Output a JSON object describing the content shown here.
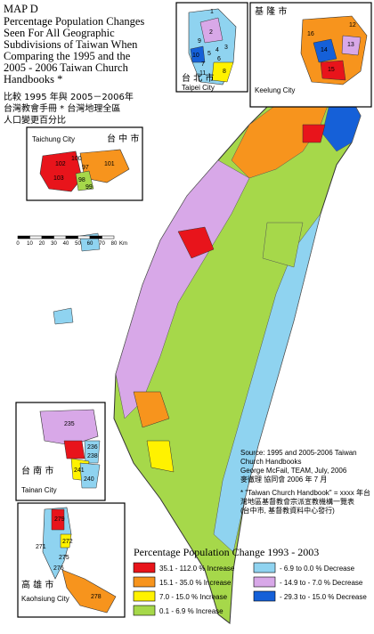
{
  "title_block": {
    "lines": [
      "MAP  D",
      "Percentage Population Changes",
      "Seen For All Geographic",
      "Subdivisions of Taiwan When",
      "Comparing the 1995 and the",
      "2005 - 2006 Taiwan Church",
      "Handbooks *"
    ]
  },
  "chinese_title": {
    "lines": [
      "比較 1995 年與 2005－2006年",
      "台灣教會手冊 * 台灣地理全區",
      "人口變更百分比"
    ]
  },
  "insets": {
    "taipei": {
      "name_zh": "台 北 市",
      "name_en": "Taipei City",
      "labels": [
        "1",
        "2",
        "3",
        "4",
        "5",
        "6",
        "7",
        "8",
        "9",
        "10",
        "11"
      ]
    },
    "keelung": {
      "name_zh": "基 隆 市",
      "name_en": "Keelung City",
      "labels": [
        "12",
        "13",
        "14",
        "15",
        "16"
      ]
    },
    "taichung": {
      "name_en": "Taichung City",
      "name_zh": "台 中 市",
      "labels": [
        "101",
        "102",
        "103",
        "97",
        "98",
        "99",
        "100"
      ]
    },
    "tainan": {
      "name_zh": "台 南 市",
      "name_en": "Tainan City",
      "labels": [
        "235",
        "236",
        "238",
        "241",
        "240"
      ]
    },
    "kaohsiung": {
      "name_zh": "高 雄 市",
      "name_en": "Kaohsiung City",
      "labels": [
        "279",
        "271",
        "272",
        "275",
        "276",
        "278"
      ]
    }
  },
  "scale": {
    "ticks": [
      0,
      10,
      20,
      30,
      40,
      50,
      60,
      70,
      80
    ],
    "unit": "Km"
  },
  "source": {
    "lines": [
      "Source: 1995 and 2005-2006 Taiwan",
      "Church Handbooks",
      "George McFail, TEAM, July, 2006",
      "麥徹理  協同會 2006 年 7 月"
    ]
  },
  "footnote": {
    "lines": [
      "* \"Taiwan Church Handbook\" = xxxx 年台",
      "灣地區基督教會宗派宣教機構一覽表",
      "(台中市, 基督教資料中心發行)"
    ]
  },
  "legend": {
    "title": "Percentage Population Change 1993 - 2003",
    "items": [
      {
        "label": "35.1 - 112.0 % Increase",
        "color": "#e8141b"
      },
      {
        "label": "15.1 - 35.0 % Increase",
        "color": "#f7941d"
      },
      {
        "label": "7.0 - 15.0 % Increase",
        "color": "#fff200"
      },
      {
        "label": "0.1 - 6.9 % Increase",
        "color": "#a6d84a"
      },
      {
        "label": "- 6.9  to   0.0 % Decrease",
        "color": "#8fd3f0"
      },
      {
        "label": "- 14.9  to  - 7.0 % Decrease",
        "color": "#d8a8e8"
      },
      {
        "label": "- 29.3  to  - 15.0 % Decrease",
        "color": "#1560d8"
      }
    ]
  }
}
